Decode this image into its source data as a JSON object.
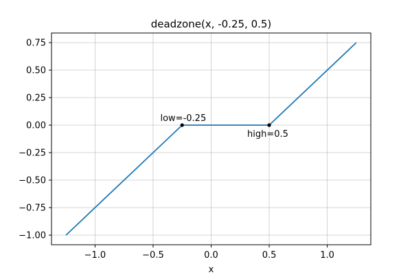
{
  "chart_data": {
    "type": "line",
    "title": "deadzone(x, -0.25, 0.5)",
    "xlabel": "x",
    "ylabel": "",
    "xlim": [
      -1.375,
      1.375
    ],
    "ylim": [
      -1.0875,
      0.8375
    ],
    "grid": true,
    "series": [
      {
        "color": "#1f77b4",
        "x": [
          -1.25,
          -0.25,
          0.5,
          1.25
        ],
        "y": [
          -1.0,
          0.0,
          0.0,
          0.75
        ]
      }
    ],
    "xticks": [
      -1.0,
      -0.5,
      0.0,
      0.5,
      1.0
    ],
    "xtick_labels": [
      "−1.0",
      "−0.5",
      "0.0",
      "0.5",
      "1.0"
    ],
    "yticks": [
      -1.0,
      -0.75,
      -0.5,
      -0.25,
      0.0,
      0.25,
      0.5,
      0.75
    ],
    "ytick_labels": [
      "−1.00",
      "−0.75",
      "−0.50",
      "−0.25",
      "0.00",
      "0.25",
      "0.50",
      "0.75"
    ],
    "markers": [
      {
        "x": -0.25,
        "y": 0.0,
        "label": "low=-0.25",
        "anchor": "end",
        "position": "above"
      },
      {
        "x": 0.5,
        "y": 0.0,
        "label": "high=0.5",
        "anchor": "start",
        "position": "below"
      }
    ]
  }
}
